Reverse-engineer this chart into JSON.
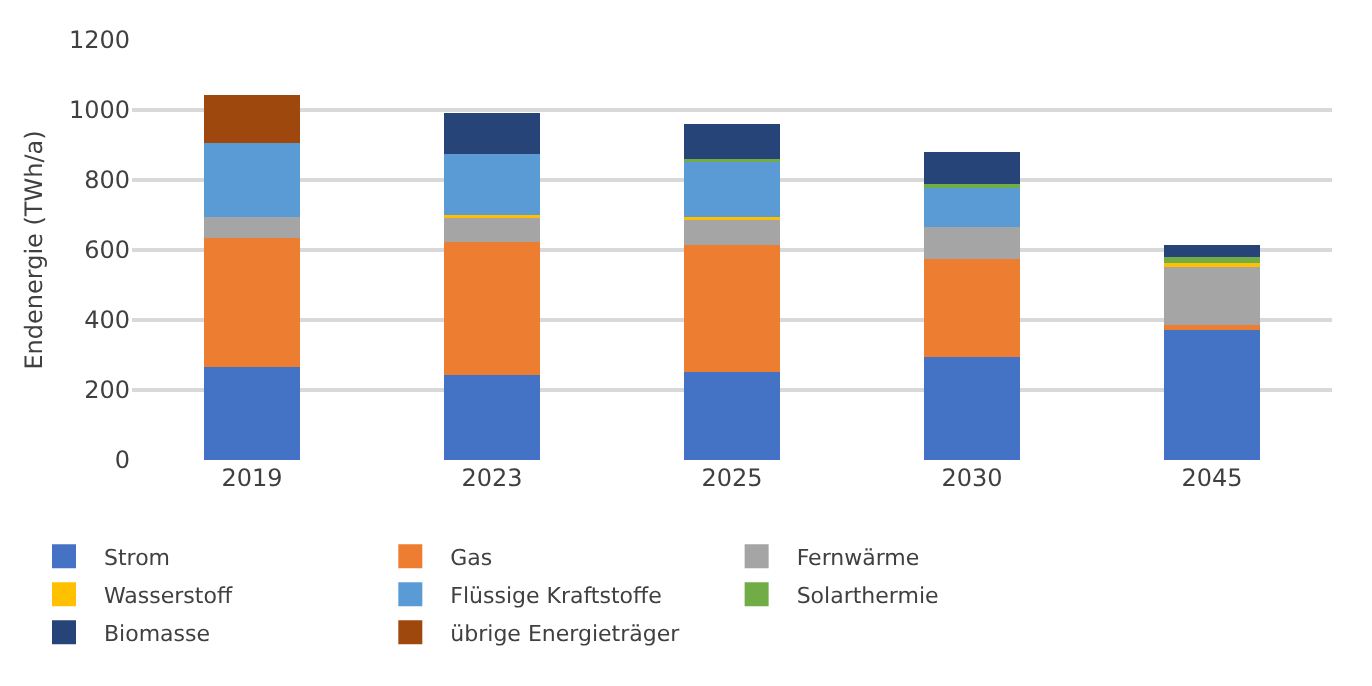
{
  "chart_data": {
    "type": "bar",
    "stacked": true,
    "ylabel": "Endenergie (TWh/a)",
    "categories": [
      "2019",
      "2023",
      "2025",
      "2030",
      "2045"
    ],
    "series": [
      {
        "name": "Strom",
        "color": "#4472c4",
        "values": [
          267,
          244,
          251,
          295,
          375
        ]
      },
      {
        "name": "Gas",
        "color": "#ed7d31",
        "values": [
          367,
          379,
          364,
          280,
          10
        ]
      },
      {
        "name": "Fernwärme",
        "color": "#a5a5a5",
        "values": [
          61,
          72,
          73,
          90,
          167
        ]
      },
      {
        "name": "Wasserstoff",
        "color": "#ffc000",
        "values": [
          0,
          5,
          7,
          0,
          12
        ]
      },
      {
        "name": "Flüssige Kraftstoffe",
        "color": "#5b9bd5",
        "values": [
          212,
          175,
          160,
          114,
          0
        ]
      },
      {
        "name": "Solarthermie",
        "color": "#70ad47",
        "values": [
          0,
          0,
          6,
          10,
          15
        ]
      },
      {
        "name": "Biomasse",
        "color": "#264478",
        "values": [
          0,
          116,
          99,
          91,
          34
        ]
      },
      {
        "name": "übrige Energieträger",
        "color": "#9e480e",
        "values": [
          137,
          0,
          0,
          0,
          0
        ]
      }
    ],
    "ylim": [
      0,
      1200
    ],
    "yticks": [
      0,
      200,
      400,
      600,
      800,
      1000,
      1200
    ],
    "grid": "y",
    "legend": "bottom"
  }
}
